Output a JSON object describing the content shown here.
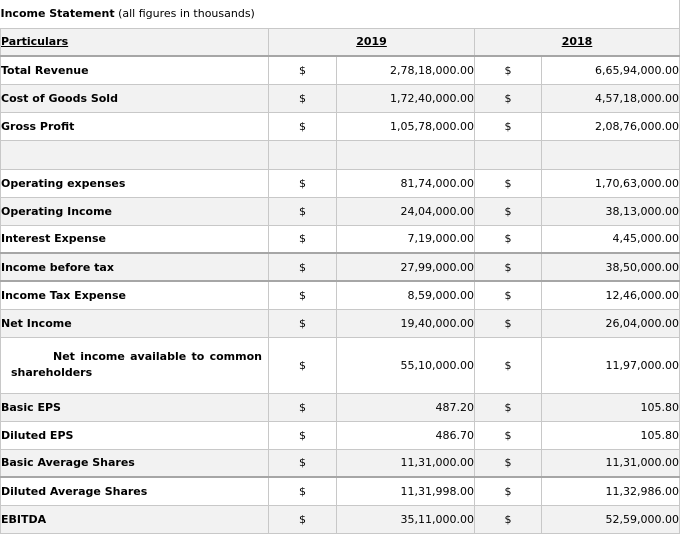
{
  "title": {
    "bold": "Income Statement",
    "rest": " (all figures in thousands)"
  },
  "header": {
    "label": "Particulars",
    "year1": "2019",
    "year2": "2018"
  },
  "currency": "$",
  "rows": [
    {
      "label": "Total Revenue",
      "v2019": "2,78,18,000.00",
      "v2018": "6,65,94,000.00"
    },
    {
      "label": "Cost of Goods Sold",
      "v2019": "1,72,40,000.00",
      "v2018": "4,57,18,000.00"
    },
    {
      "label": "Gross Profit",
      "v2019": "1,05,78,000.00",
      "v2018": "2,08,76,000.00"
    },
    {
      "label": "Operating expenses",
      "v2019": "81,74,000.00",
      "v2018": "1,70,63,000.00"
    },
    {
      "label": "Operating Income",
      "v2019": "24,04,000.00",
      "v2018": "38,13,000.00"
    },
    {
      "label": "Interest Expense",
      "v2019": "7,19,000.00",
      "v2018": "4,45,000.00"
    },
    {
      "label": "Income before tax",
      "v2019": "27,99,000.00",
      "v2018": "38,50,000.00"
    },
    {
      "label": "Income Tax Expense",
      "v2019": "8,59,000.00",
      "v2018": "12,46,000.00"
    },
    {
      "label": "Net Income",
      "v2019": "19,40,000.00",
      "v2018": "26,04,000.00"
    },
    {
      "label_line1": "Net income available to common",
      "label_line2": "shareholders",
      "v2019": "55,10,000.00",
      "v2018": "11,97,000.00"
    },
    {
      "label": "Basic EPS",
      "v2019": "487.20",
      "v2018": "105.80"
    },
    {
      "label": "Diluted EPS",
      "v2019": "486.70",
      "v2018": "105.80"
    },
    {
      "label": "Basic Average Shares",
      "v2019": "11,31,000.00",
      "v2018": "11,31,000.00"
    },
    {
      "label": "Diluted Average Shares",
      "v2019": "11,31,998.00",
      "v2018": "11,32,986.00"
    },
    {
      "label": "EBITDA",
      "v2019": "35,11,000.00",
      "v2018": "52,59,000.00"
    }
  ]
}
